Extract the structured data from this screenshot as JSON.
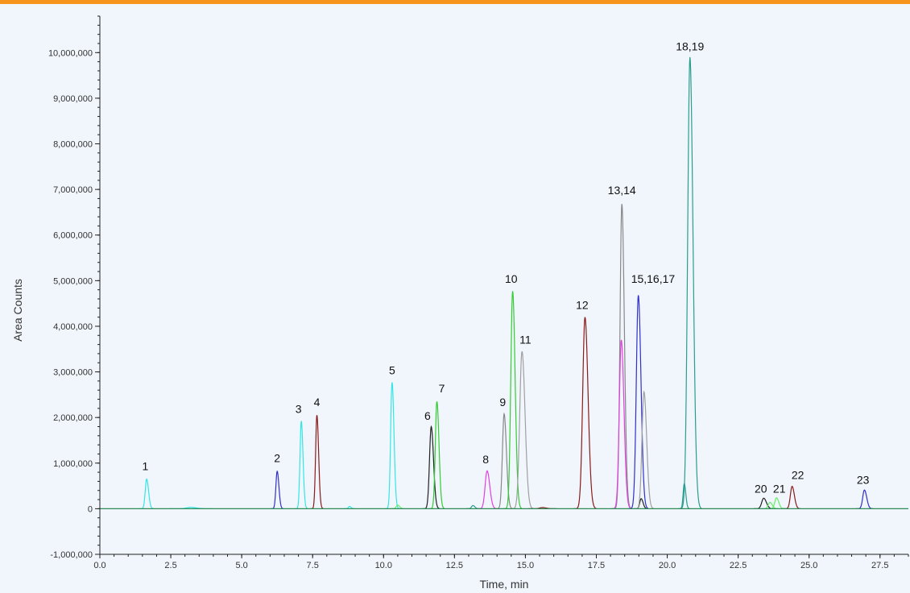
{
  "colors": {
    "accent_bar": "#f7941d",
    "background": "#f0f6fc",
    "axis": "#222222",
    "baseline": "#2e8b57"
  },
  "chart_data": {
    "type": "line",
    "chart_subtype": "chromatogram",
    "title": "",
    "xlabel": "Time, min",
    "ylabel": "Area Counts",
    "xlim": [
      0,
      28.5
    ],
    "ylim": [
      -1000000,
      10800000
    ],
    "x_ticks": [
      0,
      2.5,
      5,
      7.5,
      10,
      12.5,
      15,
      17.5,
      20,
      22.5,
      25,
      27.5
    ],
    "x_tick_labels": [
      "0.0",
      "2.5",
      "5.0",
      "7.5",
      "10.0",
      "12.5",
      "15.0",
      "17.5",
      "20.0",
      "22.5",
      "25.0",
      "27.5"
    ],
    "y_ticks": [
      -1000000,
      0,
      1000000,
      2000000,
      3000000,
      4000000,
      5000000,
      6000000,
      7000000,
      8000000,
      9000000,
      10000000
    ],
    "y_tick_labels": [
      "-1,000,000",
      "0",
      "1,000,000",
      "2,000,000",
      "3,000,000",
      "4,000,000",
      "5,000,000",
      "6,000,000",
      "7,000,000",
      "8,000,000",
      "9,000,000",
      "10,000,000"
    ],
    "grid": false,
    "legend": "none",
    "peaks": [
      {
        "rt": 1.65,
        "height": 650000,
        "color": "#33e6e6",
        "width": 0.05
      },
      {
        "rt": 3.2,
        "height": 30000,
        "color": "#33e6e6",
        "width": 0.15
      },
      {
        "rt": 6.25,
        "height": 820000,
        "color": "#3030cc",
        "width": 0.045
      },
      {
        "rt": 7.1,
        "height": 1920000,
        "color": "#33e6e6",
        "width": 0.045
      },
      {
        "rt": 7.65,
        "height": 2050000,
        "color": "#8b1a1a",
        "width": 0.045
      },
      {
        "rt": 8.8,
        "height": 50000,
        "color": "#33e6e6",
        "width": 0.04
      },
      {
        "rt": 10.3,
        "height": 2770000,
        "color": "#33e6e6",
        "width": 0.05
      },
      {
        "rt": 10.5,
        "height": 80000,
        "color": "#66ee66",
        "width": 0.05
      },
      {
        "rt": 11.68,
        "height": 1800000,
        "color": "#222222",
        "width": 0.06
      },
      {
        "rt": 11.88,
        "height": 2350000,
        "color": "#33cc33",
        "width": 0.055
      },
      {
        "rt": 13.15,
        "height": 70000,
        "color": "#2a9d8f",
        "width": 0.05
      },
      {
        "rt": 13.65,
        "height": 830000,
        "color": "#e040e0",
        "width": 0.07
      },
      {
        "rt": 14.25,
        "height": 2080000,
        "color": "#888888",
        "width": 0.06
      },
      {
        "rt": 14.55,
        "height": 4770000,
        "color": "#33cc33",
        "width": 0.065
      },
      {
        "rt": 14.88,
        "height": 3450000,
        "color": "#a0a0a0",
        "width": 0.08
      },
      {
        "rt": 15.6,
        "height": 25000,
        "color": "#8b1a1a",
        "width": 0.1
      },
      {
        "rt": 17.1,
        "height": 4200000,
        "color": "#8b1a1a",
        "width": 0.08
      },
      {
        "rt": 18.4,
        "height": 6680000,
        "color": "#888888",
        "width": 0.065
      },
      {
        "rt": 18.38,
        "height": 3700000,
        "color": "#e040e0",
        "width": 0.07
      },
      {
        "rt": 18.98,
        "height": 4680000,
        "color": "#3030cc",
        "width": 0.07
      },
      {
        "rt": 19.08,
        "height": 220000,
        "color": "#222222",
        "width": 0.05
      },
      {
        "rt": 19.18,
        "height": 2560000,
        "color": "#a0a0a0",
        "width": 0.07
      },
      {
        "rt": 20.6,
        "height": 550000,
        "color": "#2a9d8f",
        "width": 0.04
      },
      {
        "rt": 20.8,
        "height": 9900000,
        "color": "#2a9d8f",
        "width": 0.08
      },
      {
        "rt": 23.4,
        "height": 230000,
        "color": "#222222",
        "width": 0.07
      },
      {
        "rt": 23.62,
        "height": 140000,
        "color": "#66ee66",
        "width": 0.06
      },
      {
        "rt": 23.85,
        "height": 240000,
        "color": "#66ee66",
        "width": 0.06
      },
      {
        "rt": 24.4,
        "height": 490000,
        "color": "#8b1a1a",
        "width": 0.06
      },
      {
        "rt": 26.95,
        "height": 410000,
        "color": "#3030cc",
        "width": 0.06
      }
    ],
    "annotations": [
      {
        "text": "1",
        "rt": 1.6,
        "y": 850000
      },
      {
        "text": "2",
        "rt": 6.25,
        "y": 1020000
      },
      {
        "text": "3",
        "rt": 7.0,
        "y": 2100000
      },
      {
        "text": "4",
        "rt": 7.65,
        "y": 2250000
      },
      {
        "text": "5",
        "rt": 10.3,
        "y": 2950000
      },
      {
        "text": "6",
        "rt": 11.55,
        "y": 1950000
      },
      {
        "text": "7",
        "rt": 12.05,
        "y": 2550000
      },
      {
        "text": "8",
        "rt": 13.6,
        "y": 1000000
      },
      {
        "text": "9",
        "rt": 14.2,
        "y": 2250000
      },
      {
        "text": "10",
        "rt": 14.5,
        "y": 4950000
      },
      {
        "text": "11",
        "rt": 15.0,
        "y": 3620000
      },
      {
        "text": "12",
        "rt": 17.0,
        "y": 4380000
      },
      {
        "text": "13,14",
        "rt": 18.4,
        "y": 6900000
      },
      {
        "text": "15,16,17",
        "rt": 19.5,
        "y": 4950000
      },
      {
        "text": "18,19",
        "rt": 20.8,
        "y": 10050000
      },
      {
        "text": "20",
        "rt": 23.3,
        "y": 350000
      },
      {
        "text": "21",
        "rt": 23.95,
        "y": 350000
      },
      {
        "text": "22",
        "rt": 24.6,
        "y": 650000
      },
      {
        "text": "23",
        "rt": 26.9,
        "y": 550000
      }
    ]
  }
}
